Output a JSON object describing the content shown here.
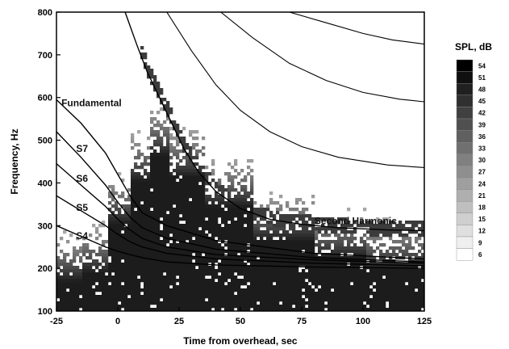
{
  "chart_data": {
    "type": "heatmap",
    "title": "",
    "xlabel": "Time from overhead, sec",
    "ylabel": "Frequency, Hz",
    "xlim": [
      -25,
      125
    ],
    "ylim": [
      100,
      800
    ],
    "x_ticks": [
      -25,
      0,
      25,
      50,
      75,
      100,
      125
    ],
    "y_ticks": [
      100,
      200,
      300,
      400,
      500,
      600,
      700,
      800
    ],
    "grid": false,
    "colorbar": {
      "title": "SPL, dB",
      "levels": [
        54,
        51,
        48,
        45,
        42,
        39,
        36,
        33,
        30,
        27,
        24,
        21,
        18,
        15,
        12,
        9,
        6
      ],
      "placement": "right"
    },
    "series": [
      {
        "name": "Fundamental",
        "points": [
          [
            -25,
            595
          ],
          [
            -15,
            540
          ],
          [
            -5,
            470
          ],
          [
            0,
            420
          ],
          [
            5,
            370
          ],
          [
            10,
            330
          ],
          [
            20,
            300
          ],
          [
            40,
            265
          ],
          [
            80,
            235
          ],
          [
            125,
            222
          ]
        ]
      },
      {
        "name": "S7",
        "points": [
          [
            -25,
            520
          ],
          [
            -15,
            460
          ],
          [
            -5,
            395
          ],
          [
            0,
            355
          ],
          [
            5,
            320
          ],
          [
            10,
            295
          ],
          [
            20,
            270
          ],
          [
            40,
            245
          ],
          [
            80,
            225
          ],
          [
            125,
            215
          ]
        ]
      },
      {
        "name": "S6",
        "points": [
          [
            -25,
            445
          ],
          [
            -15,
            395
          ],
          [
            -5,
            345
          ],
          [
            0,
            315
          ],
          [
            5,
            290
          ],
          [
            10,
            270
          ],
          [
            20,
            250
          ],
          [
            40,
            232
          ],
          [
            80,
            220
          ],
          [
            125,
            212
          ]
        ]
      },
      {
        "name": "S5",
        "points": [
          [
            -25,
            370
          ],
          [
            -15,
            335
          ],
          [
            -5,
            300
          ],
          [
            0,
            280
          ],
          [
            5,
            262
          ],
          [
            10,
            250
          ],
          [
            20,
            235
          ],
          [
            40,
            222
          ],
          [
            80,
            212
          ],
          [
            125,
            206
          ]
        ]
      },
      {
        "name": "S4",
        "points": [
          [
            -25,
            300
          ],
          [
            -15,
            275
          ],
          [
            -5,
            250
          ],
          [
            0,
            240
          ],
          [
            5,
            232
          ],
          [
            10,
            225
          ],
          [
            20,
            215
          ],
          [
            40,
            208
          ],
          [
            80,
            203
          ],
          [
            125,
            200
          ]
        ]
      },
      {
        "name": "Second Harmonic",
        "points": [
          [
            3,
            800
          ],
          [
            8,
            720
          ],
          [
            12,
            660
          ],
          [
            17,
            600
          ],
          [
            22,
            540
          ],
          [
            27,
            480
          ],
          [
            33,
            425
          ],
          [
            40,
            380
          ],
          [
            50,
            340
          ],
          [
            62,
            315
          ],
          [
            75,
            303
          ],
          [
            90,
            295
          ],
          [
            110,
            290
          ],
          [
            125,
            288
          ]
        ]
      },
      {
        "name": "",
        "points": [
          [
            20,
            800
          ],
          [
            30,
            710
          ],
          [
            40,
            630
          ],
          [
            50,
            570
          ],
          [
            62,
            520
          ],
          [
            75,
            485
          ],
          [
            90,
            460
          ],
          [
            110,
            442
          ],
          [
            125,
            436
          ]
        ]
      },
      {
        "name": "",
        "points": [
          [
            42,
            800
          ],
          [
            55,
            740
          ],
          [
            70,
            680
          ],
          [
            85,
            640
          ],
          [
            100,
            612
          ],
          [
            115,
            596
          ],
          [
            125,
            590
          ]
        ]
      },
      {
        "name": "",
        "points": [
          [
            70,
            800
          ],
          [
            85,
            775
          ],
          [
            100,
            750
          ],
          [
            112,
            735
          ],
          [
            125,
            725
          ]
        ]
      }
    ]
  }
}
